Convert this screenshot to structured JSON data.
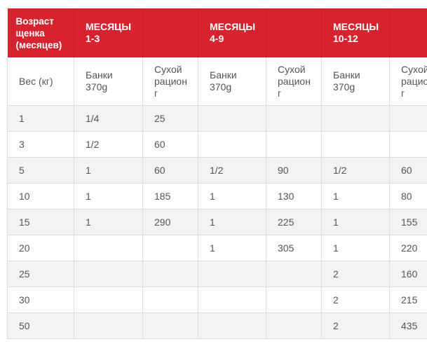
{
  "table": {
    "header": [
      "Возраст\nщенка\n(месяцев)",
      "МЕСЯЦЫ\n1-3",
      null,
      "МЕСЯЦЫ\n4-9",
      null,
      "МЕСЯЦЫ\n10-12",
      null
    ],
    "subheader": [
      "Вес (кг)",
      "Банки\n370g",
      "Сухой\nрацион\nг",
      "Банки\n370g",
      "Сухой\nрацион\nг",
      "Банки\n370g",
      "Сухой\nрацион\nг"
    ],
    "rows": [
      [
        "1",
        "1/4",
        "25",
        null,
        null,
        null,
        null
      ],
      [
        "3",
        "1/2",
        "60",
        null,
        null,
        null,
        null
      ],
      [
        "5",
        "1",
        "60",
        "1/2",
        "90",
        "1/2",
        "60"
      ],
      [
        "10",
        "1",
        "185",
        "1",
        "130",
        "1",
        "80"
      ],
      [
        "15",
        "1",
        "290",
        "1",
        "225",
        "1",
        "155"
      ],
      [
        "20",
        null,
        null,
        "1",
        "305",
        "1",
        "220"
      ],
      [
        "25",
        null,
        null,
        null,
        null,
        "2",
        "160"
      ],
      [
        "30",
        null,
        null,
        null,
        null,
        "2",
        "215"
      ],
      [
        "50",
        null,
        null,
        null,
        null,
        "2",
        "435"
      ]
    ]
  }
}
